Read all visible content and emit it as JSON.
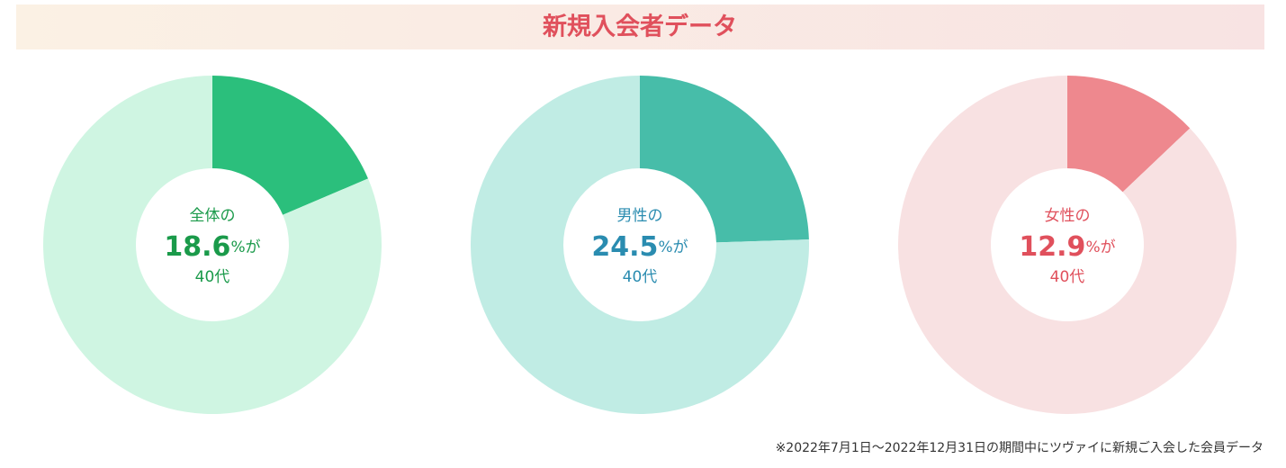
{
  "title": "新規入会者データ",
  "note": "※2022年7月1日〜2022年12月31日の期間中にツヴァイに新規ご入会した会員データ",
  "chart_data": [
    {
      "type": "pie",
      "center_top": "全体の",
      "values": [
        18.6,
        81.4
      ],
      "value_suffix": "%が",
      "center_bottom": "40代",
      "colors": [
        "#2bbf7c",
        "#cff5e2"
      ],
      "text_color": "#1a9a4a"
    },
    {
      "type": "pie",
      "center_top": "男性の",
      "values": [
        24.5,
        75.5
      ],
      "value_suffix": "%が",
      "center_bottom": "40代",
      "colors": [
        "#47bda9",
        "#c0ece4"
      ],
      "text_color": "#2a8cb0"
    },
    {
      "type": "pie",
      "center_top": "女性の",
      "values": [
        12.9,
        87.1
      ],
      "value_suffix": "%が",
      "center_bottom": "40代",
      "colors": [
        "#ee888e",
        "#f8e1e2"
      ],
      "text_color": "#e0505c"
    }
  ]
}
